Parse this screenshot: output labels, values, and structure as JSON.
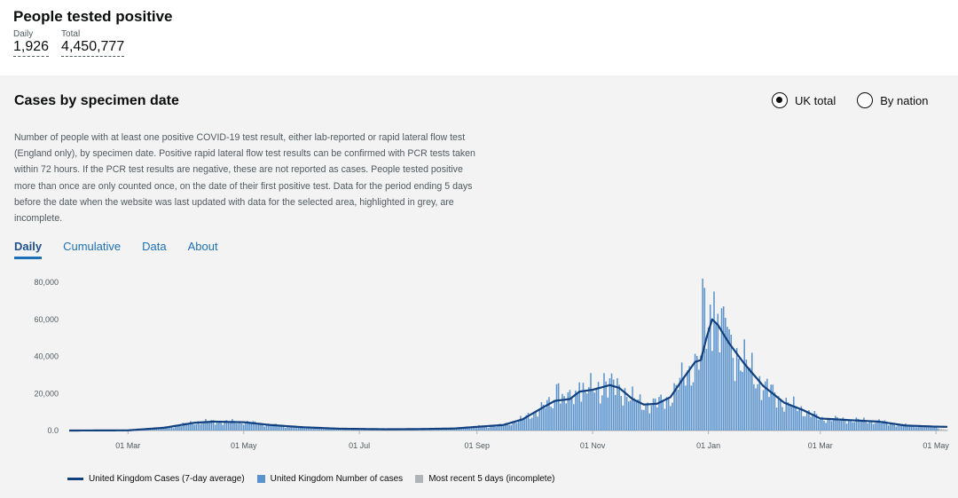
{
  "headline": {
    "title": "People tested positive",
    "daily_label": "Daily",
    "daily_value": "1,926",
    "total_label": "Total",
    "total_value": "4,450,777"
  },
  "card": {
    "title": "Cases by specimen date",
    "radio_uk": "UK total",
    "radio_nation": "By nation",
    "description": "Number of people with at least one positive COVID-19 test result, either lab-reported or rapid lateral flow test (England only), by specimen date. Positive rapid lateral flow test results can be confirmed with PCR tests taken within 72 hours. If the PCR test results are negative, these are not reported as cases. People tested positive more than once are only counted once, on the date of their first positive test. Data for the period ending 5 days before the date when the website was last updated with data for the selected area, highlighted in grey, are incomplete.",
    "tabs": [
      "Daily",
      "Cumulative",
      "Data",
      "About"
    ]
  },
  "legend": {
    "avg": "United Kingdom Cases (7-day average)",
    "bars": "United Kingdom Number of cases",
    "incomplete": "Most recent 5 days (incomplete)"
  },
  "colors": {
    "bar": "#5a93cd",
    "line": "#12407f",
    "incomplete": "#b1b4b6",
    "tab_link": "#1d70b8"
  },
  "chart_data": {
    "type": "bar",
    "title": "Cases by specimen date",
    "ylim": [
      0,
      80000
    ],
    "y_ticks": [
      0,
      20000,
      40000,
      60000,
      80000
    ],
    "y_tick_labels": [
      "0.0",
      "20,000",
      "40,000",
      "60,000",
      "80,000"
    ],
    "x_start": "2020-01-30",
    "x_end": "2021-05-07",
    "x_ticks": [
      {
        "date": "2020-03-01",
        "label": "01 Mar"
      },
      {
        "date": "2020-05-01",
        "label": "01 May"
      },
      {
        "date": "2020-07-01",
        "label": "01 Jul"
      },
      {
        "date": "2020-09-01",
        "label": "01 Sep"
      },
      {
        "date": "2020-11-01",
        "label": "01 Nov"
      },
      {
        "date": "2021-01-01",
        "label": "01 Jan"
      },
      {
        "date": "2021-03-01",
        "label": "01 Mar"
      },
      {
        "date": "2021-05-01",
        "label": "01 May"
      }
    ],
    "avg_keypoints": [
      [
        "2020-01-30",
        0
      ],
      [
        "2020-03-01",
        100
      ],
      [
        "2020-03-20",
        1500
      ],
      [
        "2020-04-05",
        4200
      ],
      [
        "2020-04-15",
        4800
      ],
      [
        "2020-04-25",
        4600
      ],
      [
        "2020-05-01",
        4500
      ],
      [
        "2020-05-15",
        3000
      ],
      [
        "2020-06-01",
        1800
      ],
      [
        "2020-06-20",
        1000
      ],
      [
        "2020-07-15",
        700
      ],
      [
        "2020-08-01",
        800
      ],
      [
        "2020-08-20",
        1100
      ],
      [
        "2020-09-01",
        2000
      ],
      [
        "2020-09-15",
        3000
      ],
      [
        "2020-09-25",
        6000
      ],
      [
        "2020-10-05",
        12000
      ],
      [
        "2020-10-12",
        16000
      ],
      [
        "2020-10-20",
        17000
      ],
      [
        "2020-10-25",
        21000
      ],
      [
        "2020-11-01",
        22000
      ],
      [
        "2020-11-10",
        24500
      ],
      [
        "2020-11-15",
        23000
      ],
      [
        "2020-11-22",
        17000
      ],
      [
        "2020-11-28",
        14000
      ],
      [
        "2020-12-05",
        14500
      ],
      [
        "2020-12-12",
        18000
      ],
      [
        "2020-12-18",
        27000
      ],
      [
        "2020-12-25",
        37000
      ],
      [
        "2020-12-28",
        38000
      ],
      [
        "2020-12-31",
        50000
      ],
      [
        "2021-01-03",
        60000
      ],
      [
        "2021-01-06",
        57000
      ],
      [
        "2021-01-12",
        47000
      ],
      [
        "2021-01-20",
        36000
      ],
      [
        "2021-01-30",
        24000
      ],
      [
        "2021-02-10",
        15000
      ],
      [
        "2021-02-20",
        11000
      ],
      [
        "2021-03-01",
        6500
      ],
      [
        "2021-03-15",
        5700
      ],
      [
        "2021-04-01",
        4800
      ],
      [
        "2021-04-15",
        2700
      ],
      [
        "2021-05-01",
        2100
      ],
      [
        "2021-05-07",
        2000
      ]
    ],
    "spikes": [
      {
        "date": "2020-10-13",
        "value": 25000
      },
      {
        "date": "2020-10-14",
        "value": 25500
      },
      {
        "date": "2020-10-25",
        "value": 26000
      },
      {
        "date": "2020-11-07",
        "value": 31000
      },
      {
        "date": "2020-11-12",
        "value": 27500
      },
      {
        "date": "2020-12-29",
        "value": 82000
      },
      {
        "date": "2020-12-30",
        "value": 77000
      },
      {
        "date": "2021-01-04",
        "value": 75000
      },
      {
        "date": "2021-01-02",
        "value": 68000
      },
      {
        "date": "2021-01-08",
        "value": 66000
      },
      {
        "date": "2021-01-06",
        "value": 63000
      },
      {
        "date": "2021-01-11",
        "value": 56000
      }
    ],
    "incomplete_days": 5,
    "series": [
      {
        "name": "United Kingdom Cases (7-day average)",
        "type": "line"
      },
      {
        "name": "United Kingdom Number of cases",
        "type": "bar"
      },
      {
        "name": "Most recent 5 days (incomplete)",
        "type": "bar"
      }
    ]
  }
}
